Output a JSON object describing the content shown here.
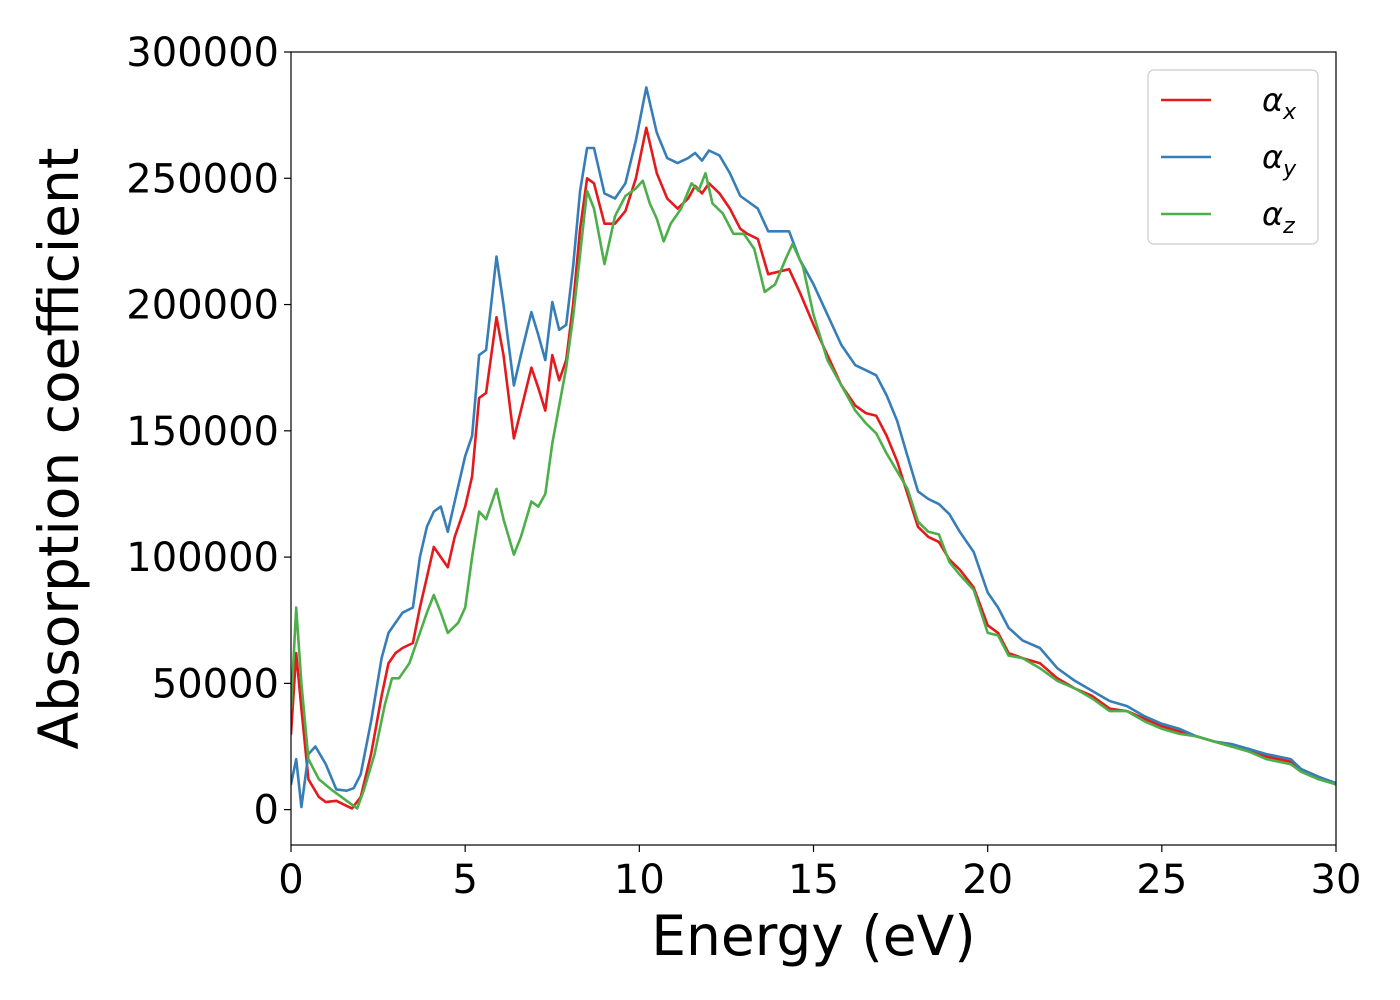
{
  "chart_data": {
    "type": "line",
    "title": "",
    "xlabel": "Energy (eV)",
    "ylabel": "Absorption coefficient",
    "xlim": [
      0,
      30
    ],
    "ylim": [
      -14000,
      300000
    ],
    "xticks": [
      "0",
      "5",
      "10",
      "15",
      "20",
      "25",
      "30"
    ],
    "yticks": [
      "0",
      "50000",
      "100000",
      "150000",
      "200000",
      "250000",
      "300000"
    ],
    "grid": false,
    "legend_position": "top-right",
    "series": [
      {
        "name": "αx",
        "name_base": "α",
        "name_sub": "x",
        "color": "#e41a1c",
        "points": [
          [
            0,
            30000
          ],
          [
            0.15,
            62000
          ],
          [
            0.3,
            40000
          ],
          [
            0.5,
            12000
          ],
          [
            0.8,
            5000
          ],
          [
            1.0,
            3000
          ],
          [
            1.3,
            3500
          ],
          [
            1.6,
            1500
          ],
          [
            1.75,
            500
          ],
          [
            2.0,
            5000
          ],
          [
            2.3,
            22000
          ],
          [
            2.6,
            45000
          ],
          [
            2.8,
            58000
          ],
          [
            3.0,
            62000
          ],
          [
            3.2,
            64000
          ],
          [
            3.5,
            66000
          ],
          [
            3.7,
            80000
          ],
          [
            3.9,
            92000
          ],
          [
            4.1,
            104000
          ],
          [
            4.3,
            100000
          ],
          [
            4.5,
            96000
          ],
          [
            4.7,
            108000
          ],
          [
            5.0,
            120000
          ],
          [
            5.2,
            132000
          ],
          [
            5.4,
            163000
          ],
          [
            5.6,
            165000
          ],
          [
            5.9,
            195000
          ],
          [
            6.1,
            180000
          ],
          [
            6.4,
            147000
          ],
          [
            6.6,
            158000
          ],
          [
            6.9,
            175000
          ],
          [
            7.1,
            167000
          ],
          [
            7.3,
            158000
          ],
          [
            7.5,
            180000
          ],
          [
            7.7,
            170000
          ],
          [
            7.9,
            178000
          ],
          [
            8.1,
            200000
          ],
          [
            8.3,
            230000
          ],
          [
            8.5,
            250000
          ],
          [
            8.7,
            248000
          ],
          [
            9.0,
            232000
          ],
          [
            9.3,
            232000
          ],
          [
            9.6,
            237000
          ],
          [
            9.9,
            250000
          ],
          [
            10.2,
            270000
          ],
          [
            10.5,
            252000
          ],
          [
            10.8,
            242000
          ],
          [
            11.1,
            238000
          ],
          [
            11.4,
            242000
          ],
          [
            11.6,
            247000
          ],
          [
            11.8,
            244000
          ],
          [
            12.0,
            248000
          ],
          [
            12.3,
            244000
          ],
          [
            12.6,
            238000
          ],
          [
            12.9,
            230000
          ],
          [
            13.1,
            228000
          ],
          [
            13.4,
            226000
          ],
          [
            13.7,
            212000
          ],
          [
            14.0,
            213000
          ],
          [
            14.3,
            214000
          ],
          [
            14.6,
            205000
          ],
          [
            15.0,
            192000
          ],
          [
            15.4,
            180000
          ],
          [
            15.8,
            168000
          ],
          [
            16.2,
            160000
          ],
          [
            16.5,
            157000
          ],
          [
            16.8,
            156000
          ],
          [
            17.1,
            148000
          ],
          [
            17.4,
            138000
          ],
          [
            17.7,
            125000
          ],
          [
            18.0,
            112000
          ],
          [
            18.3,
            108000
          ],
          [
            18.6,
            106000
          ],
          [
            18.9,
            99000
          ],
          [
            19.2,
            95000
          ],
          [
            19.6,
            88000
          ],
          [
            20.0,
            73000
          ],
          [
            20.3,
            70000
          ],
          [
            20.6,
            62000
          ],
          [
            21.0,
            60000
          ],
          [
            21.5,
            58000
          ],
          [
            22.0,
            52000
          ],
          [
            22.5,
            48000
          ],
          [
            23.0,
            45000
          ],
          [
            23.5,
            40000
          ],
          [
            24.0,
            39000
          ],
          [
            24.5,
            36000
          ],
          [
            25.0,
            33000
          ],
          [
            25.5,
            31000
          ],
          [
            26.0,
            29000
          ],
          [
            26.5,
            27000
          ],
          [
            27.0,
            25000
          ],
          [
            27.5,
            24000
          ],
          [
            28.0,
            21000
          ],
          [
            28.7,
            19000
          ],
          [
            29.0,
            16000
          ],
          [
            29.5,
            13000
          ],
          [
            30.0,
            10000
          ]
        ]
      },
      {
        "name": "αy",
        "name_base": "α",
        "name_sub": "y",
        "color": "#377eb8",
        "points": [
          [
            0,
            10000
          ],
          [
            0.15,
            20000
          ],
          [
            0.3,
            1000
          ],
          [
            0.5,
            22000
          ],
          [
            0.7,
            25000
          ],
          [
            1.0,
            18000
          ],
          [
            1.3,
            8000
          ],
          [
            1.6,
            7500
          ],
          [
            1.8,
            8500
          ],
          [
            2.0,
            14000
          ],
          [
            2.3,
            35000
          ],
          [
            2.6,
            60000
          ],
          [
            2.8,
            70000
          ],
          [
            3.0,
            74000
          ],
          [
            3.2,
            78000
          ],
          [
            3.5,
            80000
          ],
          [
            3.7,
            100000
          ],
          [
            3.9,
            112000
          ],
          [
            4.1,
            118000
          ],
          [
            4.3,
            120000
          ],
          [
            4.5,
            110000
          ],
          [
            4.7,
            122000
          ],
          [
            5.0,
            140000
          ],
          [
            5.2,
            148000
          ],
          [
            5.4,
            180000
          ],
          [
            5.6,
            182000
          ],
          [
            5.9,
            219000
          ],
          [
            6.1,
            200000
          ],
          [
            6.4,
            168000
          ],
          [
            6.6,
            180000
          ],
          [
            6.9,
            197000
          ],
          [
            7.1,
            188000
          ],
          [
            7.3,
            178000
          ],
          [
            7.5,
            201000
          ],
          [
            7.7,
            190000
          ],
          [
            7.9,
            192000
          ],
          [
            8.1,
            215000
          ],
          [
            8.3,
            245000
          ],
          [
            8.5,
            262000
          ],
          [
            8.7,
            262000
          ],
          [
            9.0,
            244000
          ],
          [
            9.3,
            242000
          ],
          [
            9.6,
            248000
          ],
          [
            9.9,
            265000
          ],
          [
            10.2,
            286000
          ],
          [
            10.5,
            268000
          ],
          [
            10.8,
            258000
          ],
          [
            11.1,
            256000
          ],
          [
            11.4,
            258000
          ],
          [
            11.6,
            260000
          ],
          [
            11.8,
            257000
          ],
          [
            12.0,
            261000
          ],
          [
            12.3,
            259000
          ],
          [
            12.6,
            252000
          ],
          [
            12.9,
            243000
          ],
          [
            13.1,
            241000
          ],
          [
            13.4,
            238000
          ],
          [
            13.7,
            229000
          ],
          [
            14.0,
            229000
          ],
          [
            14.3,
            229000
          ],
          [
            14.6,
            218000
          ],
          [
            15.0,
            208000
          ],
          [
            15.4,
            196000
          ],
          [
            15.8,
            184000
          ],
          [
            16.2,
            176000
          ],
          [
            16.5,
            174000
          ],
          [
            16.8,
            172000
          ],
          [
            17.1,
            164000
          ],
          [
            17.4,
            154000
          ],
          [
            17.7,
            140000
          ],
          [
            18.0,
            126000
          ],
          [
            18.3,
            123000
          ],
          [
            18.6,
            121000
          ],
          [
            18.9,
            117000
          ],
          [
            19.2,
            110000
          ],
          [
            19.6,
            102000
          ],
          [
            20.0,
            86000
          ],
          [
            20.3,
            80000
          ],
          [
            20.6,
            72000
          ],
          [
            21.0,
            67000
          ],
          [
            21.5,
            64000
          ],
          [
            22.0,
            56000
          ],
          [
            22.5,
            51000
          ],
          [
            23.0,
            47000
          ],
          [
            23.5,
            43000
          ],
          [
            24.0,
            41000
          ],
          [
            24.5,
            37000
          ],
          [
            25.0,
            34000
          ],
          [
            25.5,
            32000
          ],
          [
            26.0,
            29000
          ],
          [
            26.5,
            27000
          ],
          [
            27.0,
            26000
          ],
          [
            27.5,
            24000
          ],
          [
            28.0,
            22000
          ],
          [
            28.7,
            20000
          ],
          [
            29.0,
            16000
          ],
          [
            29.5,
            13000
          ],
          [
            30.0,
            10500
          ]
        ]
      },
      {
        "name": "αz",
        "name_base": "α",
        "name_sub": "z",
        "color": "#4daf4a",
        "points": [
          [
            0,
            40000
          ],
          [
            0.15,
            80000
          ],
          [
            0.3,
            50000
          ],
          [
            0.5,
            20000
          ],
          [
            0.8,
            12000
          ],
          [
            1.2,
            7500
          ],
          [
            1.6,
            3500
          ],
          [
            1.9,
            500
          ],
          [
            2.1,
            8000
          ],
          [
            2.4,
            22000
          ],
          [
            2.7,
            42000
          ],
          [
            2.9,
            52000
          ],
          [
            3.1,
            52000
          ],
          [
            3.4,
            58000
          ],
          [
            3.7,
            70000
          ],
          [
            3.9,
            78000
          ],
          [
            4.1,
            85000
          ],
          [
            4.3,
            78000
          ],
          [
            4.5,
            70000
          ],
          [
            4.8,
            74000
          ],
          [
            5.0,
            80000
          ],
          [
            5.2,
            100000
          ],
          [
            5.4,
            118000
          ],
          [
            5.6,
            115000
          ],
          [
            5.9,
            127000
          ],
          [
            6.1,
            115000
          ],
          [
            6.4,
            101000
          ],
          [
            6.6,
            108000
          ],
          [
            6.9,
            122000
          ],
          [
            7.1,
            120000
          ],
          [
            7.3,
            125000
          ],
          [
            7.5,
            145000
          ],
          [
            7.7,
            160000
          ],
          [
            7.9,
            175000
          ],
          [
            8.1,
            195000
          ],
          [
            8.3,
            220000
          ],
          [
            8.5,
            245000
          ],
          [
            8.7,
            238000
          ],
          [
            9.0,
            216000
          ],
          [
            9.3,
            235000
          ],
          [
            9.6,
            243000
          ],
          [
            9.9,
            246000
          ],
          [
            10.1,
            249000
          ],
          [
            10.3,
            240000
          ],
          [
            10.5,
            234000
          ],
          [
            10.7,
            225000
          ],
          [
            10.9,
            232000
          ],
          [
            11.2,
            238000
          ],
          [
            11.5,
            248000
          ],
          [
            11.7,
            245000
          ],
          [
            11.9,
            252000
          ],
          [
            12.1,
            240000
          ],
          [
            12.4,
            236000
          ],
          [
            12.7,
            228000
          ],
          [
            13.0,
            228000
          ],
          [
            13.3,
            222000
          ],
          [
            13.6,
            205000
          ],
          [
            13.9,
            208000
          ],
          [
            14.2,
            218000
          ],
          [
            14.4,
            224000
          ],
          [
            14.7,
            215000
          ],
          [
            15.0,
            196000
          ],
          [
            15.4,
            178000
          ],
          [
            15.8,
            168000
          ],
          [
            16.2,
            158000
          ],
          [
            16.5,
            153000
          ],
          [
            16.8,
            149000
          ],
          [
            17.1,
            141000
          ],
          [
            17.4,
            134000
          ],
          [
            17.7,
            127000
          ],
          [
            18.0,
            114000
          ],
          [
            18.3,
            110000
          ],
          [
            18.6,
            109000
          ],
          [
            18.9,
            98000
          ],
          [
            19.2,
            93000
          ],
          [
            19.6,
            87000
          ],
          [
            20.0,
            70000
          ],
          [
            20.3,
            69000
          ],
          [
            20.6,
            61000
          ],
          [
            21.0,
            60000
          ],
          [
            21.5,
            56000
          ],
          [
            22.0,
            51000
          ],
          [
            22.5,
            48000
          ],
          [
            23.0,
            44000
          ],
          [
            23.5,
            39000
          ],
          [
            24.0,
            39000
          ],
          [
            24.5,
            35000
          ],
          [
            25.0,
            32000
          ],
          [
            25.5,
            30000
          ],
          [
            26.0,
            29000
          ],
          [
            26.5,
            27000
          ],
          [
            27.0,
            25000
          ],
          [
            27.5,
            23000
          ],
          [
            28.0,
            20000
          ],
          [
            28.7,
            18000
          ],
          [
            29.0,
            15000
          ],
          [
            29.5,
            12000
          ],
          [
            30.0,
            10000
          ]
        ]
      }
    ]
  }
}
